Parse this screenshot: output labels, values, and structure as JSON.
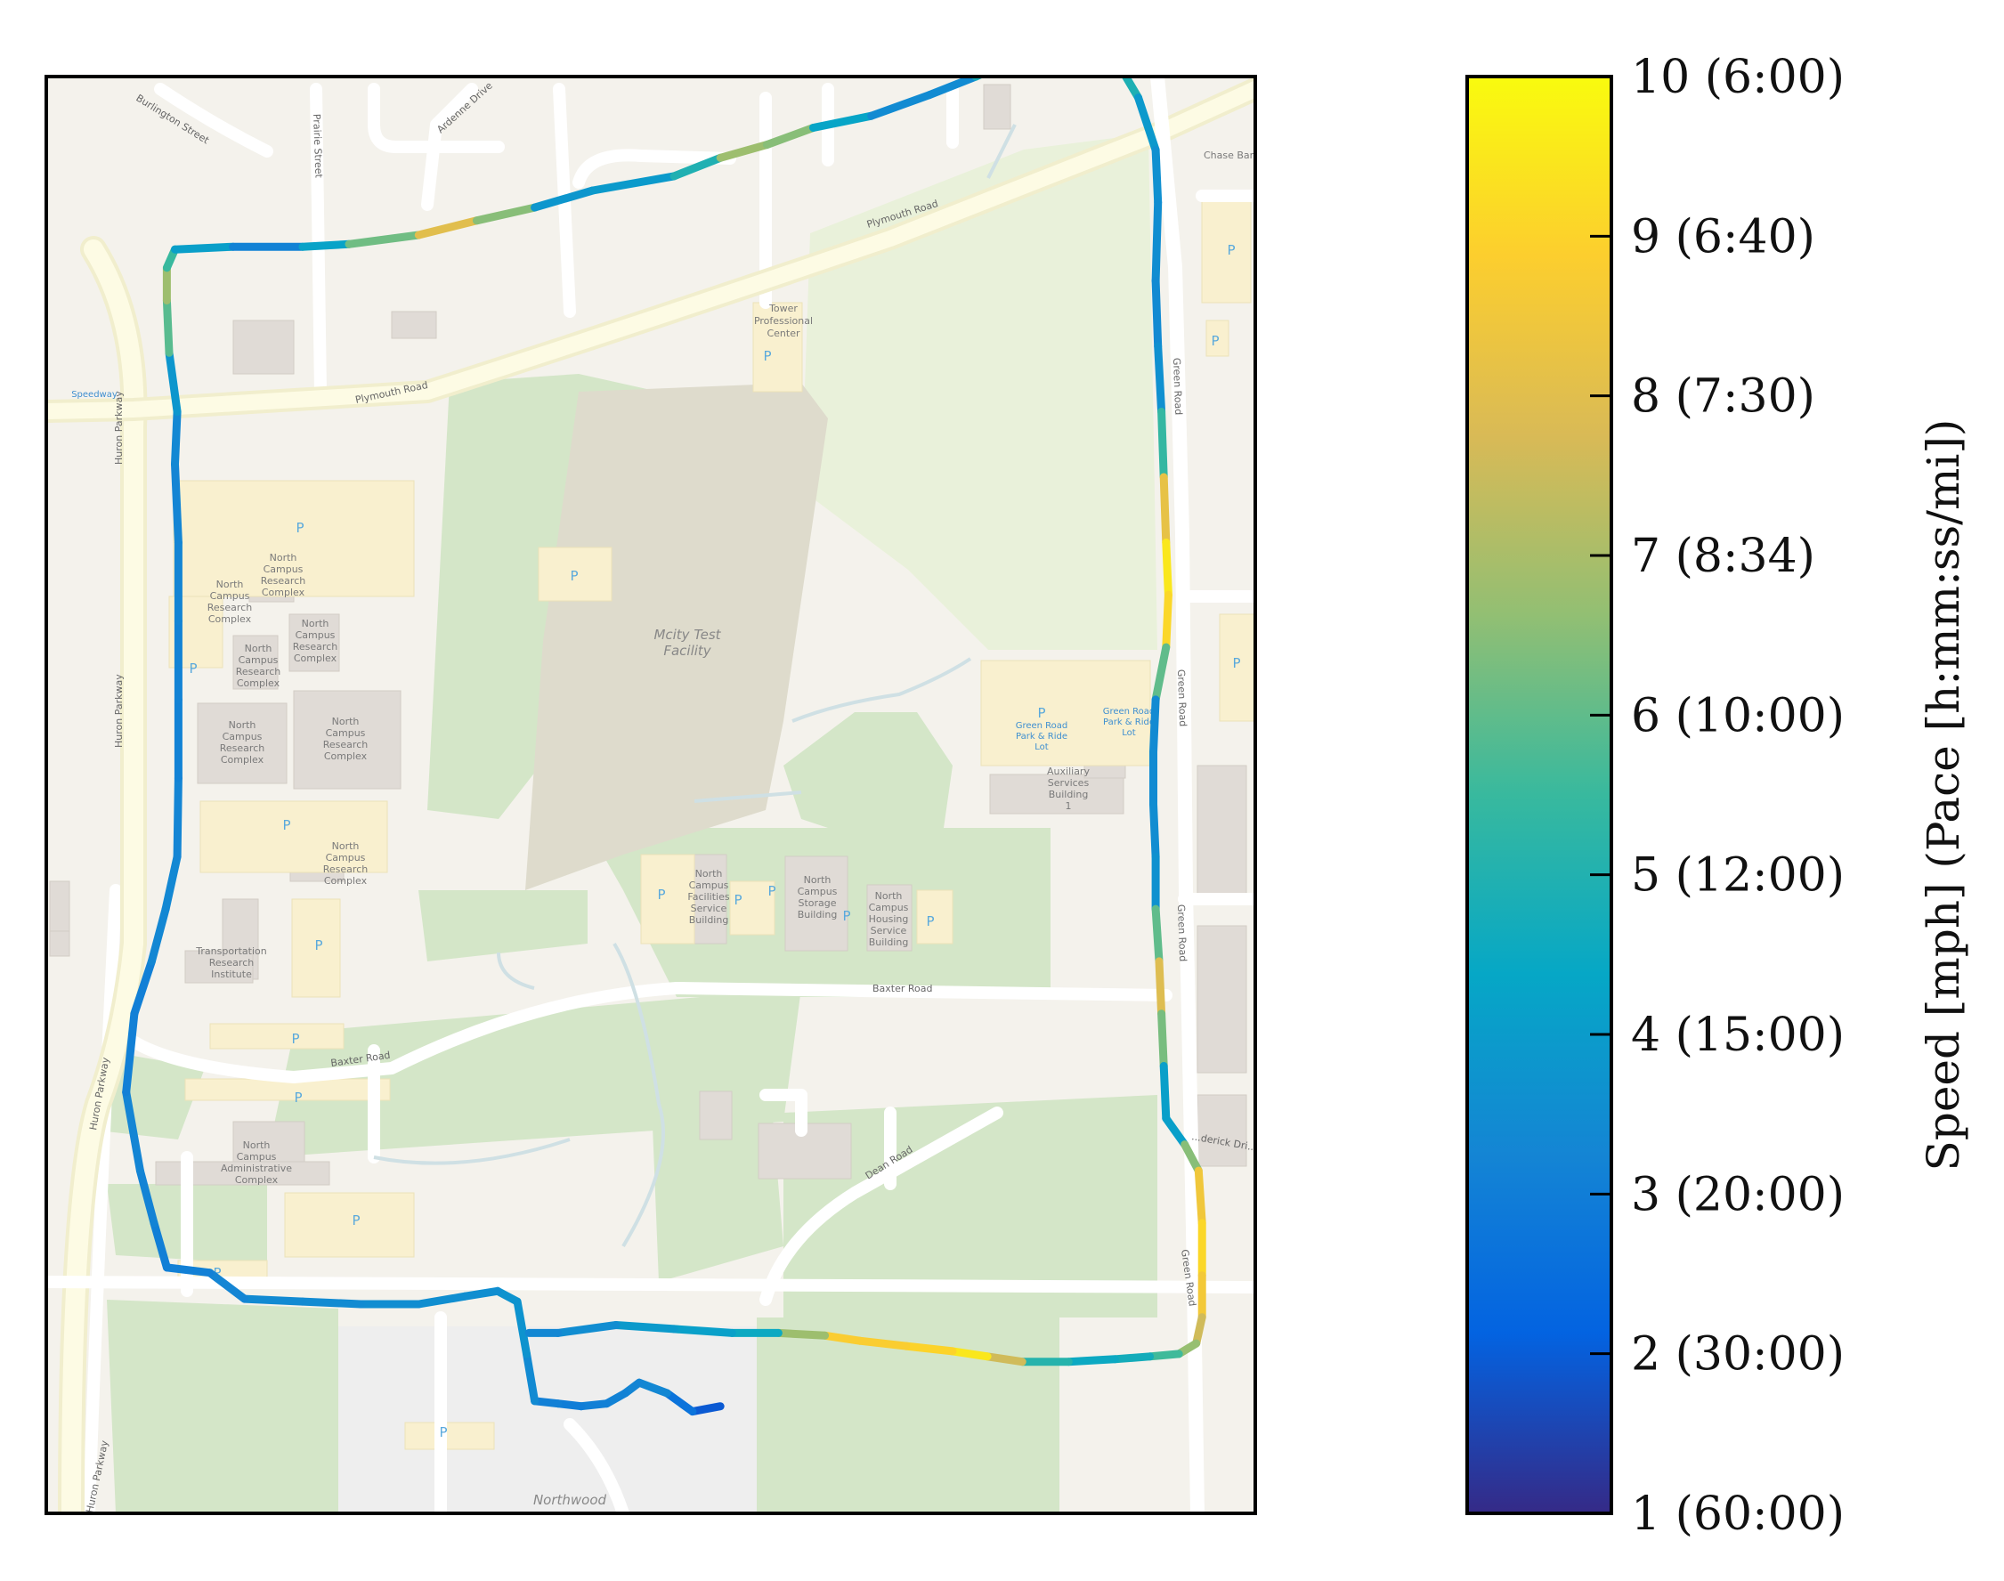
{
  "colorbar": {
    "label": "Speed [mph] (Pace [h:mm:ss/mi])",
    "range": [
      1,
      10
    ],
    "ticks": [
      {
        "value": 10,
        "label": "10 (6:00)"
      },
      {
        "value": 9,
        "label": "9 (6:40)"
      },
      {
        "value": 8,
        "label": "8 (7:30)"
      },
      {
        "value": 7,
        "label": "7 (8:34)"
      },
      {
        "value": 6,
        "label": "6 (10:00)"
      },
      {
        "value": 5,
        "label": "5 (12:00)"
      },
      {
        "value": 4,
        "label": "4 (15:00)"
      },
      {
        "value": 3,
        "label": "3 (20:00)"
      },
      {
        "value": 2,
        "label": "2 (30:00)"
      },
      {
        "value": 1,
        "label": "1 (60:00)"
      }
    ],
    "colormap": [
      "#352a87",
      "#0363e1",
      "#1485d4",
      "#06a7c6",
      "#38b99e",
      "#92bf73",
      "#d9ba56",
      "#fcce2e",
      "#f9fb0e"
    ]
  },
  "map": {
    "streets": {
      "plymouth_road": "Plymouth Road",
      "green_road": "Green Road",
      "huron_parkway": "Huron Parkway",
      "baxter_road": "Baxter Road",
      "dean_road": "Dean Road",
      "burlington_street": "Burlington Street",
      "prairie_street": "Prairie Street",
      "ardenne_drive": "Ardenne Drive",
      "frederick_drive": "...derick Dri..."
    },
    "places": {
      "mcity_line1": "Mcity Test",
      "mcity_line2": "Facility",
      "tower_line1": "Tower",
      "tower_line2": "Professional",
      "tower_line3": "Center",
      "nc_line1": "North",
      "nc_line2": "Campus",
      "nc_research": "Research",
      "nc_complex": "Complex",
      "transport_line1": "Transportation",
      "transport_line2": "Research",
      "transport_line3": "Institute",
      "admin_line3": "Administrative",
      "facilities_line3": "Facilities",
      "facilities_line4": "Service",
      "facilities_line5": "Building",
      "storage_line3": "Storage",
      "storage_line4": "Building",
      "housing_line3": "Housing",
      "housing_line4": "Service",
      "housing_line5": "Building",
      "aux_line1": "Auxiliary",
      "aux_line2": "Services",
      "aux_line3": "Building",
      "aux_line4": "1",
      "park_ride_line1": "Green Road",
      "park_ride_line2": "Park & Ride",
      "park_ride_line3": "Lot",
      "speedway": "Speedway",
      "chase": "Chase Bank",
      "northwood": "Northwood",
      "parking": "P"
    }
  },
  "route": [
    [
      0.56,
      0.94,
      1.8
    ],
    [
      0.536,
      0.944,
      2.1
    ],
    [
      0.514,
      0.93,
      3.2
    ],
    [
      0.49,
      0.922,
      3.4
    ],
    [
      0.478,
      0.93,
      3.1
    ],
    [
      0.462,
      0.938,
      3.2
    ],
    [
      0.44,
      0.94,
      3.0
    ],
    [
      0.42,
      0.938,
      3.0
    ],
    [
      0.4,
      0.936,
      3.2
    ],
    [
      0.393,
      0.9,
      3.6
    ],
    [
      0.385,
      0.86,
      3.8
    ],
    [
      0.368,
      0.852,
      3.6
    ],
    [
      0.34,
      0.856,
      3.5
    ],
    [
      0.3,
      0.862,
      3.6
    ],
    [
      0.25,
      0.862,
      3.4
    ],
    [
      0.2,
      0.86,
      3.5
    ],
    [
      0.15,
      0.858,
      3.3
    ],
    [
      0.12,
      0.838,
      3.2
    ],
    [
      0.083,
      0.834,
      3.0
    ],
    [
      0.072,
      0.8,
      3.1
    ],
    [
      0.06,
      0.76,
      3.3
    ],
    [
      0.048,
      0.7,
      3.2
    ],
    [
      0.055,
      0.64,
      3.0
    ],
    [
      0.07,
      0.6,
      3.2
    ],
    [
      0.082,
      0.56,
      3.4
    ],
    [
      0.092,
      0.52,
      3.3
    ],
    [
      0.093,
      0.46,
      3.2
    ],
    [
      0.093,
      0.4,
      3.1
    ],
    [
      0.093,
      0.34,
      3.3
    ],
    [
      0.093,
      0.28,
      3.2
    ],
    [
      0.09,
      0.22,
      3.3
    ],
    [
      0.092,
      0.18,
      3.4
    ],
    [
      0.085,
      0.135,
      4.2
    ],
    [
      0.083,
      0.095,
      7.6
    ],
    [
      0.083,
      0.07,
      6.0
    ],
    [
      0.09,
      0.056,
      5.0
    ],
    [
      0.14,
      0.054,
      3.2
    ],
    [
      0.2,
      0.054,
      3.1
    ],
    [
      0.24,
      0.052,
      5.4
    ],
    [
      0.3,
      0.045,
      7.0
    ],
    [
      0.35,
      0.034,
      9.0
    ],
    [
      0.4,
      0.024,
      4.0
    ],
    [
      0.45,
      0.011,
      3.6
    ],
    [
      0.52,
      0.0,
      4.3
    ],
    [
      0.56,
      -0.014,
      5.6
    ],
    [
      0.6,
      -0.024,
      8.0
    ],
    [
      0.64,
      -0.037,
      5.0
    ],
    [
      0.69,
      -0.046,
      3.6
    ],
    [
      0.74,
      -0.062,
      3.3
    ],
    [
      0.78,
      -0.076,
      3.6
    ],
    [
      0.8,
      -0.084,
      6.0
    ],
    [
      0.83,
      -0.086,
      8.6
    ],
    [
      0.86,
      -0.092,
      9.1
    ],
    [
      0.88,
      -0.096,
      8.0
    ],
    [
      0.895,
      -0.09,
      6.6
    ],
    [
      0.908,
      -0.078,
      5.6
    ],
    [
      0.92,
      -0.06,
      4.2
    ],
    [
      0.935,
      -0.02,
      3.6
    ],
    [
      0.937,
      0.02,
      3.6
    ],
    [
      0.935,
      0.08,
      3.4
    ],
    [
      0.937,
      0.13,
      3.4
    ],
    [
      0.94,
      0.18,
      3.8
    ],
    [
      0.942,
      0.23,
      7.0
    ],
    [
      0.944,
      0.28,
      9.4
    ],
    [
      0.946,
      0.32,
      9.6
    ],
    [
      0.944,
      0.36,
      8.6
    ],
    [
      0.935,
      0.4,
      3.4
    ],
    [
      0.933,
      0.44,
      3.4
    ],
    [
      0.933,
      0.48,
      3.5
    ],
    [
      0.935,
      0.52,
      3.5
    ],
    [
      0.935,
      0.56,
      3.8
    ],
    [
      0.938,
      0.6,
      8.2
    ],
    [
      0.94,
      0.64,
      7.6
    ],
    [
      0.942,
      0.68,
      5.0
    ],
    [
      0.944,
      0.72,
      3.2
    ],
    [
      0.96,
      0.74,
      5.0
    ],
    [
      0.972,
      0.76,
      8.0
    ],
    [
      0.975,
      0.8,
      9.0
    ],
    [
      0.975,
      0.84,
      9.2
    ],
    [
      0.975,
      0.872,
      8.0
    ],
    [
      0.97,
      0.892,
      7.2
    ],
    [
      0.955,
      0.9,
      6.2
    ],
    [
      0.93,
      0.902,
      5.0
    ],
    [
      0.9,
      0.904,
      4.4
    ],
    [
      0.86,
      0.906,
      4.6
    ],
    [
      0.82,
      0.906,
      5.6
    ],
    [
      0.79,
      0.902,
      9.6
    ],
    [
      0.76,
      0.898,
      9.4
    ],
    [
      0.72,
      0.894,
      8.6
    ],
    [
      0.68,
      0.89,
      9.0
    ],
    [
      0.65,
      0.886,
      8.6
    ],
    [
      0.61,
      0.884,
      5.0
    ],
    [
      0.57,
      0.884,
      4.0
    ],
    [
      0.52,
      0.881,
      4.3
    ],
    [
      0.47,
      0.878,
      3.6
    ],
    [
      0.42,
      0.884,
      3.4
    ],
    [
      0.395,
      0.884,
      3.2
    ]
  ]
}
